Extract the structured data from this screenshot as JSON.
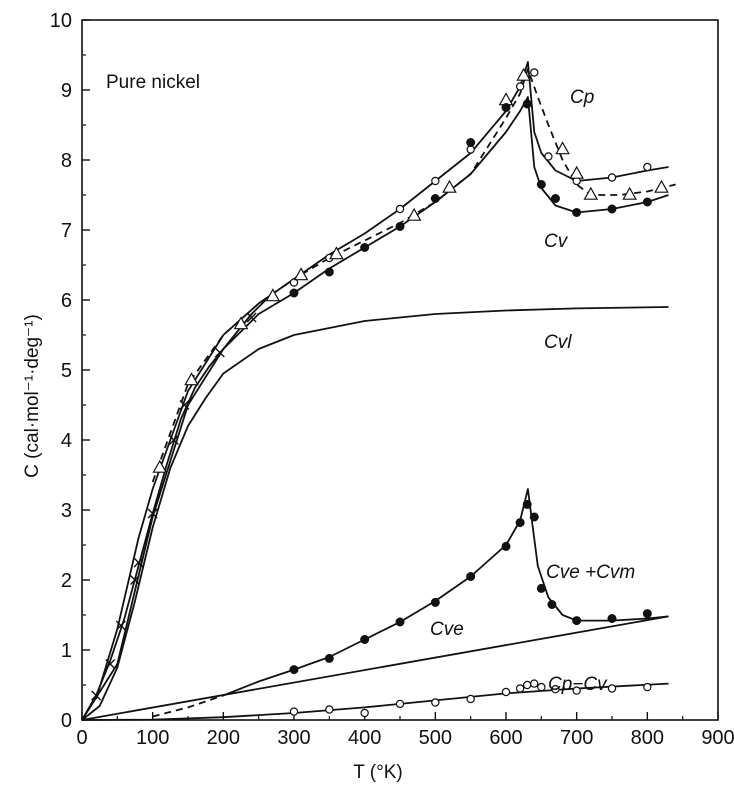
{
  "chart_data": {
    "type": "line",
    "title": "",
    "xlabel": "T (°K)",
    "ylabel": "C (cal·mol⁻¹·deg⁻¹)",
    "xlim": [
      0,
      900
    ],
    "ylim": [
      0,
      10
    ],
    "x_ticks": [
      "0",
      "100",
      "200",
      "300",
      "400",
      "500",
      "600",
      "700",
      "800",
      "900"
    ],
    "y_ticks": [
      "0",
      "1",
      "2",
      "3",
      "4",
      "5",
      "6",
      "7",
      "8",
      "9",
      "10"
    ],
    "grid": false,
    "legend": "none (curves labelled directly)",
    "annotations": {
      "material": "Pure nickel",
      "cp": "Cp",
      "cv": "Cv",
      "cvl": "Cvl",
      "cve_cvm": "Cve +Cvm",
      "cve": "Cve",
      "cp_cv": "Cp−Cv"
    },
    "series": [
      {
        "label_key": "cp",
        "style": "solid",
        "marker": "open-circle",
        "x": [
          20,
          50,
          80,
          100,
          150,
          200,
          250,
          300,
          350,
          400,
          450,
          500,
          550,
          600,
          620,
          631,
          640,
          650,
          670,
          700,
          750,
          800,
          830
        ],
        "y": [
          0.3,
          1.3,
          2.6,
          3.3,
          4.7,
          5.5,
          5.95,
          6.3,
          6.65,
          6.95,
          7.3,
          7.7,
          8.1,
          8.7,
          9.05,
          9.4,
          8.4,
          8.1,
          7.85,
          7.7,
          7.75,
          7.85,
          7.9
        ],
        "points_x": [
          300,
          350,
          450,
          500,
          550,
          600,
          620,
          640,
          660,
          700,
          750,
          800
        ],
        "points_y": [
          6.25,
          6.6,
          7.3,
          7.7,
          8.15,
          8.75,
          9.05,
          9.25,
          8.05,
          7.7,
          7.75,
          7.9
        ]
      },
      {
        "label_key": "cp",
        "style": "dashed",
        "marker": "triangle",
        "x": [
          100,
          150,
          200,
          250,
          300,
          350,
          400,
          450,
          500,
          550,
          600,
          620,
          631,
          645,
          660,
          680,
          700,
          720,
          760,
          800,
          840
        ],
        "y": [
          3.4,
          4.8,
          5.5,
          5.95,
          6.3,
          6.6,
          6.85,
          7.1,
          7.4,
          7.8,
          8.6,
          8.95,
          9.3,
          8.9,
          8.5,
          8.0,
          7.65,
          7.5,
          7.5,
          7.55,
          7.65
        ],
        "points_x": [
          110,
          155,
          225,
          270,
          310,
          360,
          470,
          520,
          600,
          625,
          680,
          700,
          720,
          775,
          820
        ],
        "points_y": [
          3.6,
          4.85,
          5.65,
          6.05,
          6.35,
          6.65,
          7.2,
          7.6,
          8.85,
          9.2,
          8.15,
          7.8,
          7.5,
          7.5,
          7.6
        ]
      },
      {
        "label_key": "cv",
        "style": "solid",
        "marker": "filled-circle",
        "x": [
          0,
          50,
          100,
          150,
          200,
          250,
          300,
          350,
          400,
          450,
          500,
          550,
          600,
          620,
          631,
          640,
          650,
          670,
          700,
          750,
          800,
          830
        ],
        "y": [
          0,
          0.8,
          2.9,
          4.5,
          5.3,
          5.8,
          6.1,
          6.45,
          6.75,
          7.05,
          7.4,
          7.8,
          8.4,
          8.7,
          8.9,
          7.9,
          7.6,
          7.35,
          7.25,
          7.3,
          7.4,
          7.5
        ],
        "points_x": [
          300,
          350,
          400,
          450,
          500,
          550,
          600,
          630,
          650,
          670,
          700,
          750,
          800
        ],
        "points_y": [
          6.1,
          6.4,
          6.75,
          7.05,
          7.45,
          8.25,
          8.75,
          8.8,
          7.65,
          7.45,
          7.25,
          7.3,
          7.4
        ]
      },
      {
        "label_key": "cvl",
        "style": "solid",
        "marker": "none",
        "x": [
          0,
          25,
          50,
          75,
          100,
          125,
          150,
          175,
          200,
          250,
          300,
          350,
          400,
          450,
          500,
          600,
          700,
          830
        ],
        "y": [
          0,
          0.2,
          0.75,
          1.7,
          2.75,
          3.6,
          4.2,
          4.6,
          4.95,
          5.3,
          5.5,
          5.6,
          5.7,
          5.75,
          5.8,
          5.85,
          5.88,
          5.9
        ]
      },
      {
        "label_key": "",
        "style": "solid",
        "marker": "x",
        "x": [
          0,
          20,
          40,
          60,
          80,
          100,
          120,
          140,
          160,
          180,
          200,
          220,
          240,
          260
        ],
        "y": [
          0,
          0.35,
          0.85,
          1.45,
          2.2,
          2.95,
          3.65,
          4.3,
          4.75,
          5.05,
          5.3,
          5.55,
          5.8,
          6.0
        ],
        "points_x": [
          20,
          40,
          55,
          75,
          80,
          100,
          130,
          145,
          195,
          240
        ],
        "points_y": [
          0.35,
          0.8,
          1.35,
          2.0,
          2.25,
          2.95,
          4.0,
          4.5,
          5.25,
          5.75
        ]
      },
      {
        "label_key": "cve_cvm",
        "style": "solid",
        "marker": "filled-circle",
        "x": [
          200,
          250,
          300,
          350,
          400,
          450,
          500,
          550,
          600,
          620,
          631,
          636,
          645,
          660,
          680,
          700,
          750,
          800,
          830
        ],
        "y": [
          0.35,
          0.55,
          0.72,
          0.9,
          1.15,
          1.4,
          1.7,
          2.05,
          2.5,
          2.85,
          3.3,
          2.9,
          2.2,
          1.75,
          1.5,
          1.42,
          1.42,
          1.45,
          1.48
        ],
        "points_x": [
          300,
          350,
          400,
          450,
          500,
          550,
          600,
          620,
          630,
          640,
          650,
          665,
          700,
          750,
          800
        ],
        "points_y": [
          0.72,
          0.88,
          1.15,
          1.4,
          1.68,
          2.05,
          2.48,
          2.82,
          3.08,
          2.9,
          1.88,
          1.65,
          1.42,
          1.45,
          1.52
        ]
      },
      {
        "label_key": "",
        "style": "dashed",
        "marker": "none",
        "x": [
          100,
          150,
          200
        ],
        "y": [
          0.05,
          0.18,
          0.35
        ]
      },
      {
        "label_key": "cve",
        "style": "solid",
        "marker": "none",
        "x": [
          0,
          830
        ],
        "y": [
          0,
          1.48
        ]
      },
      {
        "label_key": "cp_cv",
        "style": "solid",
        "marker": "open-circle",
        "x": [
          0,
          100,
          200,
          300,
          400,
          500,
          600,
          700,
          830
        ],
        "y": [
          0,
          0.005,
          0.04,
          0.1,
          0.18,
          0.28,
          0.38,
          0.45,
          0.52
        ],
        "points_x": [
          300,
          350,
          400,
          450,
          500,
          550,
          600,
          620,
          630,
          640,
          650,
          670,
          700,
          750,
          800
        ],
        "points_y": [
          0.12,
          0.15,
          0.1,
          0.23,
          0.25,
          0.3,
          0.4,
          0.45,
          0.5,
          0.52,
          0.47,
          0.44,
          0.42,
          0.45,
          0.47
        ]
      }
    ]
  }
}
